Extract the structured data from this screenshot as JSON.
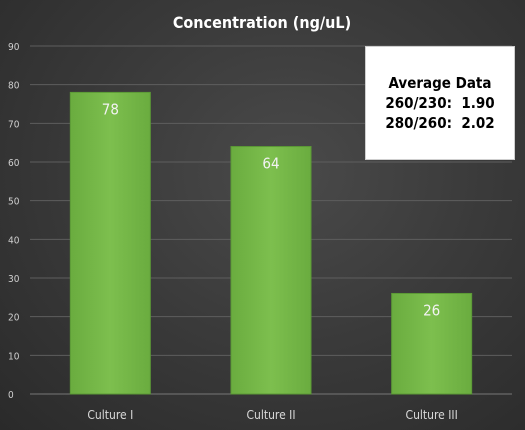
{
  "chart_data": {
    "type": "bar",
    "title": "Concentration (ng/uL)",
    "categories": [
      "Culture I",
      "Culture II",
      "Culture III"
    ],
    "values": [
      78,
      64,
      26
    ],
    "data_labels": [
      "78",
      "64",
      "26"
    ],
    "xlabel": "",
    "ylabel": "",
    "ylim": [
      0,
      90
    ],
    "yticks": [
      0,
      10,
      20,
      30,
      40,
      50,
      60,
      70,
      80,
      90
    ],
    "grid": true,
    "bar_color": "#6aac3f",
    "bar_color_light": "#7dbf4e",
    "legend": "none"
  },
  "annotation": {
    "title": "Average Data",
    "line1": "260/230:  1.90",
    "line2": "280/260:  2.02"
  }
}
